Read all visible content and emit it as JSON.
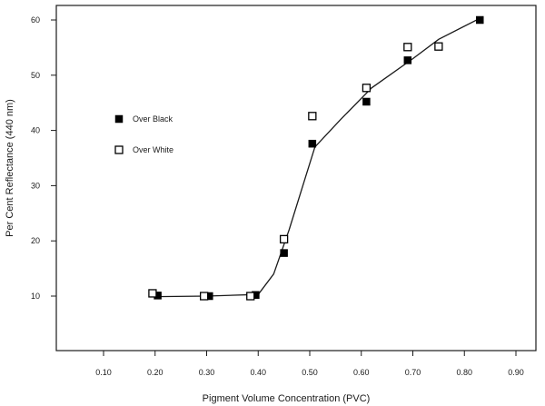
{
  "chart_data": {
    "type": "scatter",
    "title": "",
    "xlabel": "Pigment Volume Concentration (PVC)",
    "ylabel": "Per Cent Reflectance (440 nm)",
    "xlim": [
      0.05,
      0.95
    ],
    "ylim": [
      0,
      63
    ],
    "x_ticks": [
      0.1,
      0.2,
      0.3,
      0.4,
      0.5,
      0.6,
      0.7,
      0.8,
      0.9
    ],
    "x_tick_labels": [
      "0.10",
      "0.20",
      "0.30",
      "0.40",
      "0.50",
      "0.60",
      "0.70",
      "0.80",
      "0.90"
    ],
    "y_ticks": [
      10,
      20,
      30,
      40,
      50,
      60
    ],
    "y_tick_labels": [
      "10",
      "20",
      "30",
      "40",
      "50",
      "60"
    ],
    "grid": false,
    "legend_position": "left",
    "series": [
      {
        "name": "Over Black",
        "marker": "filled-square",
        "color": "#000000",
        "points": [
          {
            "x": 0.205,
            "y": 10.1
          },
          {
            "x": 0.305,
            "y": 10.0
          },
          {
            "x": 0.395,
            "y": 10.2
          },
          {
            "x": 0.45,
            "y": 17.8
          },
          {
            "x": 0.505,
            "y": 37.6
          },
          {
            "x": 0.61,
            "y": 45.2
          },
          {
            "x": 0.69,
            "y": 52.7
          },
          {
            "x": 0.83,
            "y": 60.0
          }
        ]
      },
      {
        "name": "Over White",
        "marker": "open-square",
        "color": "#000000",
        "points": [
          {
            "x": 0.195,
            "y": 10.5
          },
          {
            "x": 0.295,
            "y": 10.0
          },
          {
            "x": 0.385,
            "y": 10.0
          },
          {
            "x": 0.45,
            "y": 20.3
          },
          {
            "x": 0.505,
            "y": 42.6
          },
          {
            "x": 0.61,
            "y": 47.7
          },
          {
            "x": 0.69,
            "y": 55.1
          },
          {
            "x": 0.75,
            "y": 55.2
          }
        ]
      }
    ],
    "fit_line": {
      "points": [
        {
          "x": 0.2,
          "y": 9.9
        },
        {
          "x": 0.3,
          "y": 10.0
        },
        {
          "x": 0.4,
          "y": 10.3
        },
        {
          "x": 0.43,
          "y": 14.0
        },
        {
          "x": 0.46,
          "y": 22.0
        },
        {
          "x": 0.49,
          "y": 31.0
        },
        {
          "x": 0.51,
          "y": 37.0
        },
        {
          "x": 0.56,
          "y": 42.0
        },
        {
          "x": 0.62,
          "y": 47.7
        },
        {
          "x": 0.7,
          "y": 53.0
        },
        {
          "x": 0.75,
          "y": 56.5
        },
        {
          "x": 0.83,
          "y": 60.3
        }
      ]
    }
  }
}
